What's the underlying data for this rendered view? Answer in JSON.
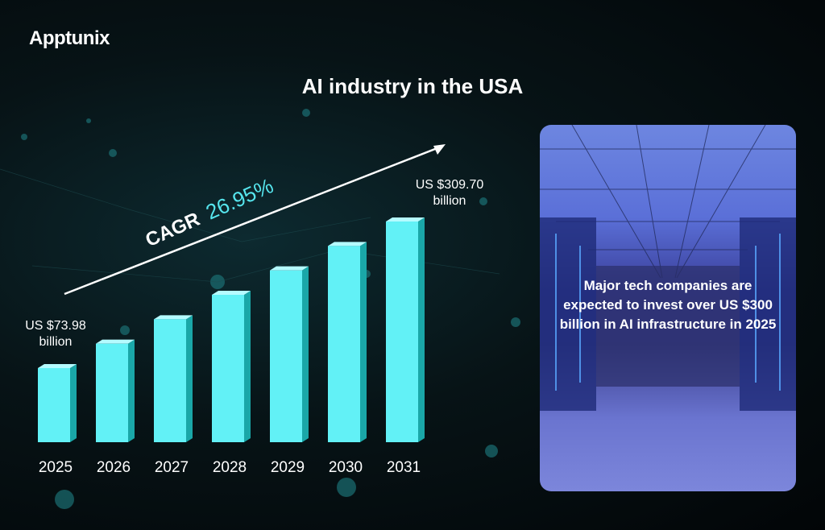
{
  "brand": {
    "logo": "Apptunix"
  },
  "chart_data": {
    "type": "bar",
    "title": "AI industry in the USA",
    "categories": [
      "2025",
      "2026",
      "2027",
      "2028",
      "2029",
      "2030",
      "2031"
    ],
    "values": [
      73.98,
      93.92,
      119.23,
      151.36,
      192.15,
      243.93,
      309.7
    ],
    "unit": "US $ billion",
    "annotations": {
      "first_label": {
        "line1": "US $73.98",
        "line2": "billion"
      },
      "last_label": {
        "line1": "US $309.70",
        "line2": "billion"
      },
      "cagr_label": "CAGR",
      "cagr_value": "26.95%"
    },
    "bar_color": "#62f1f6",
    "bar_side_color": "#1aa7a8",
    "grid": false
  },
  "panel": {
    "text": "Major tech companies are expected to invest over US $300 billion in AI infrastructure in 2025"
  }
}
